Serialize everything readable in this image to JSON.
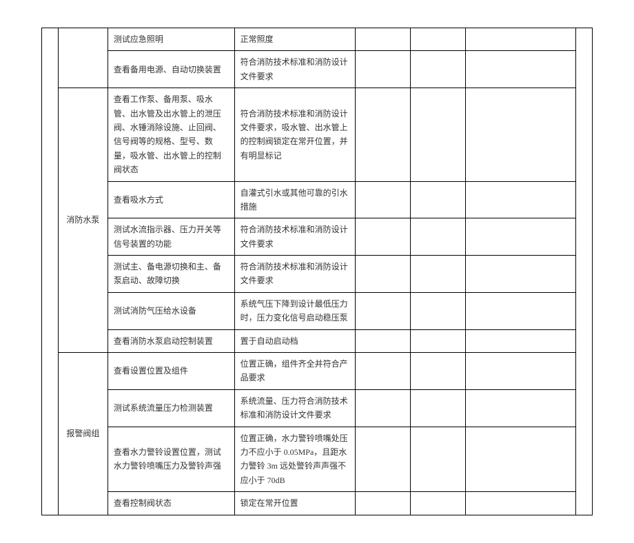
{
  "table": {
    "font_size": 12,
    "text_color": "#333333",
    "border_color": "#000000",
    "background_color": "#ffffff",
    "line_height": 1.7,
    "columns": [
      {
        "key": "A",
        "width_pct": 3
      },
      {
        "key": "B",
        "width_pct": 9
      },
      {
        "key": "C",
        "width_pct": 23
      },
      {
        "key": "D",
        "width_pct": 22
      },
      {
        "key": "E",
        "width_pct": 10
      },
      {
        "key": "F",
        "width_pct": 10
      },
      {
        "key": "G",
        "width_pct": 20
      },
      {
        "key": "H",
        "width_pct": 3
      }
    ],
    "groups": [
      {
        "label": "",
        "rows": [
          {
            "c": "测试应急照明",
            "d": "正常照度"
          },
          {
            "c": "查看备用电源、自动切换装置",
            "d": "符合消防技术标准和消防设计文件要求"
          }
        ]
      },
      {
        "label": "消防水泵",
        "rows": [
          {
            "c": "查看工作泵、备用泵、吸水管、出水管及出水管上的泄压阀、水锤消除设施、止回阀、信号阀等的规格、型号、数量，吸水管、出水管上的控制阀状态",
            "d": "符合消防技术标准和消防设计文件要求，吸水管、出水管上的控制阀锁定在常开位置，并有明显标记"
          },
          {
            "c": "查看吸水方式",
            "d": "自灌式引水或其他可靠的引水措施"
          },
          {
            "c": "测试水流指示器、压力开关等信号装置的功能",
            "d": "符合消防技术标准和消防设计文件要求"
          },
          {
            "c": "测试主、备电源切换和主、备泵启动、故障切换",
            "d": "符合消防技术标准和消防设计文件要求"
          },
          {
            "c": "测试消防气压给水设备",
            "d": "系统气压下降到设计最低压力时，压力变化信号启动稳压泵"
          },
          {
            "c": "查看消防水泵启动控制装置",
            "d": "置于自动启动档"
          }
        ]
      },
      {
        "label": "报警阀组",
        "rows": [
          {
            "c": "查看设置位置及组件",
            "d": "位置正确，组件齐全并符合产品要求"
          },
          {
            "c": "测试系统流量压力检测装置",
            "d": "系统流量、压力符合消防技术标准和消防设计文件要求"
          },
          {
            "c": "查看水力警铃设置位置，测试水力警铃喷嘴压力及警铃声强",
            "d": "位置正确，水力警铃喷嘴处压力不应小于 0.05MPa，且距水力警铃 3m 远处警铃声声强不应小于 70dB"
          },
          {
            "c": "查看控制阀状态",
            "d": "锁定在常开位置"
          }
        ]
      }
    ]
  }
}
